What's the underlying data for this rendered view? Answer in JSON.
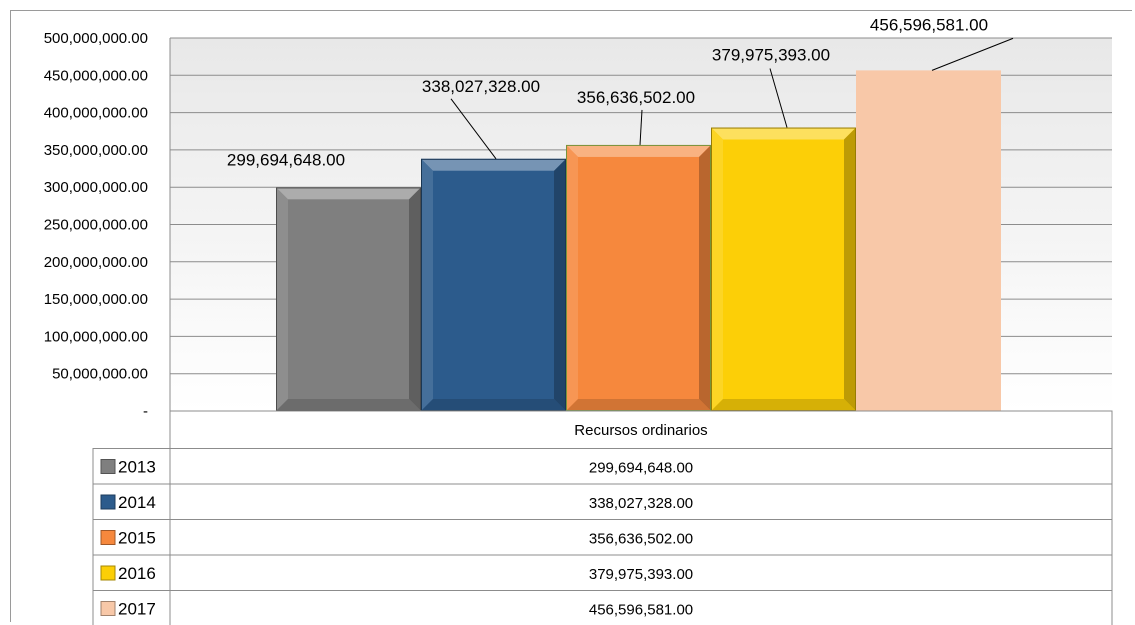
{
  "chart_data": {
    "type": "bar",
    "categories": [
      "Recursos ordinarios"
    ],
    "series": [
      {
        "name": "2013",
        "value": 299694648.0,
        "label": "299,694,648.00",
        "color": "#7f7f7f"
      },
      {
        "name": "2014",
        "value": 338027328.0,
        "label": "338,027,328.00",
        "color": "#2c5b8c"
      },
      {
        "name": "2015",
        "value": 356636502.0,
        "label": "356,636,502.00",
        "color": "#f6883d"
      },
      {
        "name": "2016",
        "value": 379975393.0,
        "label": "379,975,393.00",
        "color": "#fccf07"
      },
      {
        "name": "2017",
        "value": 456596581.0,
        "label": "456,596,581.00",
        "color": "#f8c8a8"
      }
    ],
    "y_ticks": [
      {
        "value": 0,
        "label": "-"
      },
      {
        "value": 50000000,
        "label": "50,000,000.00"
      },
      {
        "value": 100000000,
        "label": "100,000,000.00"
      },
      {
        "value": 150000000,
        "label": "150,000,000.00"
      },
      {
        "value": 200000000,
        "label": "200,000,000.00"
      },
      {
        "value": 250000000,
        "label": "250,000,000.00"
      },
      {
        "value": 300000000,
        "label": "300,000,000.00"
      },
      {
        "value": 350000000,
        "label": "350,000,000.00"
      },
      {
        "value": 400000000,
        "label": "400,000,000.00"
      },
      {
        "value": 450000000,
        "label": "450,000,000.00"
      },
      {
        "value": 500000000,
        "label": "500,000,000.00"
      }
    ],
    "ylim": [
      0,
      500000000
    ],
    "grid": true,
    "title": "",
    "xlabel": "",
    "ylabel": "",
    "data_table": true
  }
}
